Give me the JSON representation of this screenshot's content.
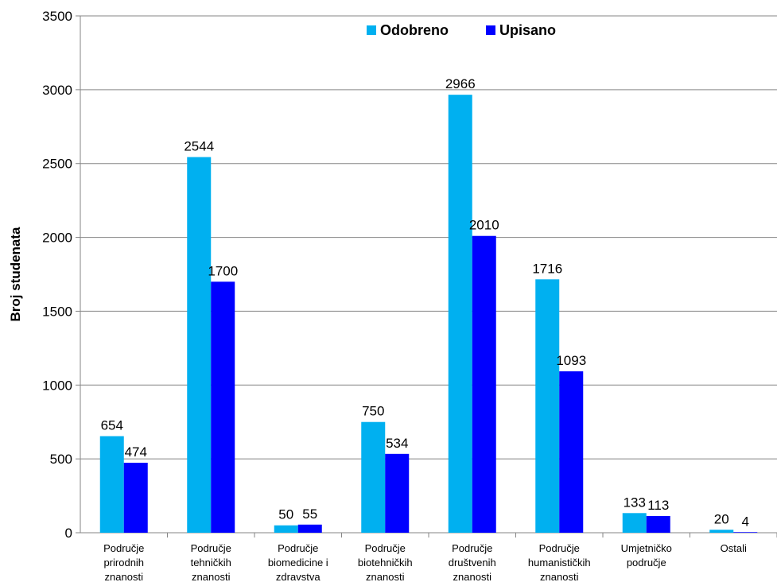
{
  "chart_data": {
    "type": "bar",
    "categories": [
      [
        "Područje",
        "prirodnih",
        "znanosti"
      ],
      [
        "Područje",
        "tehničkih",
        "znanosti"
      ],
      [
        "Područje",
        "biomedicine i",
        "zdravstva"
      ],
      [
        "Područje",
        "biotehničkih",
        "znanosti"
      ],
      [
        "Područje",
        "društvenih",
        "znanosti"
      ],
      [
        "Područje",
        "humanističkih",
        "znanosti"
      ],
      [
        "Umjetničko",
        "područje"
      ],
      [
        "Ostali"
      ]
    ],
    "series": [
      {
        "name": "Odobreno",
        "color": "#00b0f0",
        "values": [
          654,
          2544,
          50,
          750,
          2966,
          1716,
          133,
          20
        ]
      },
      {
        "name": "Upisano",
        "color": "#0000ff",
        "values": [
          474,
          1700,
          55,
          534,
          2010,
          1093,
          113,
          4
        ]
      }
    ],
    "ylabel": "Broj studenata",
    "ylim": [
      0,
      3500
    ],
    "yticks": [
      0,
      500,
      1000,
      1500,
      2000,
      2500,
      3000,
      3500
    ],
    "grid": true,
    "legend_position": "top-center"
  }
}
